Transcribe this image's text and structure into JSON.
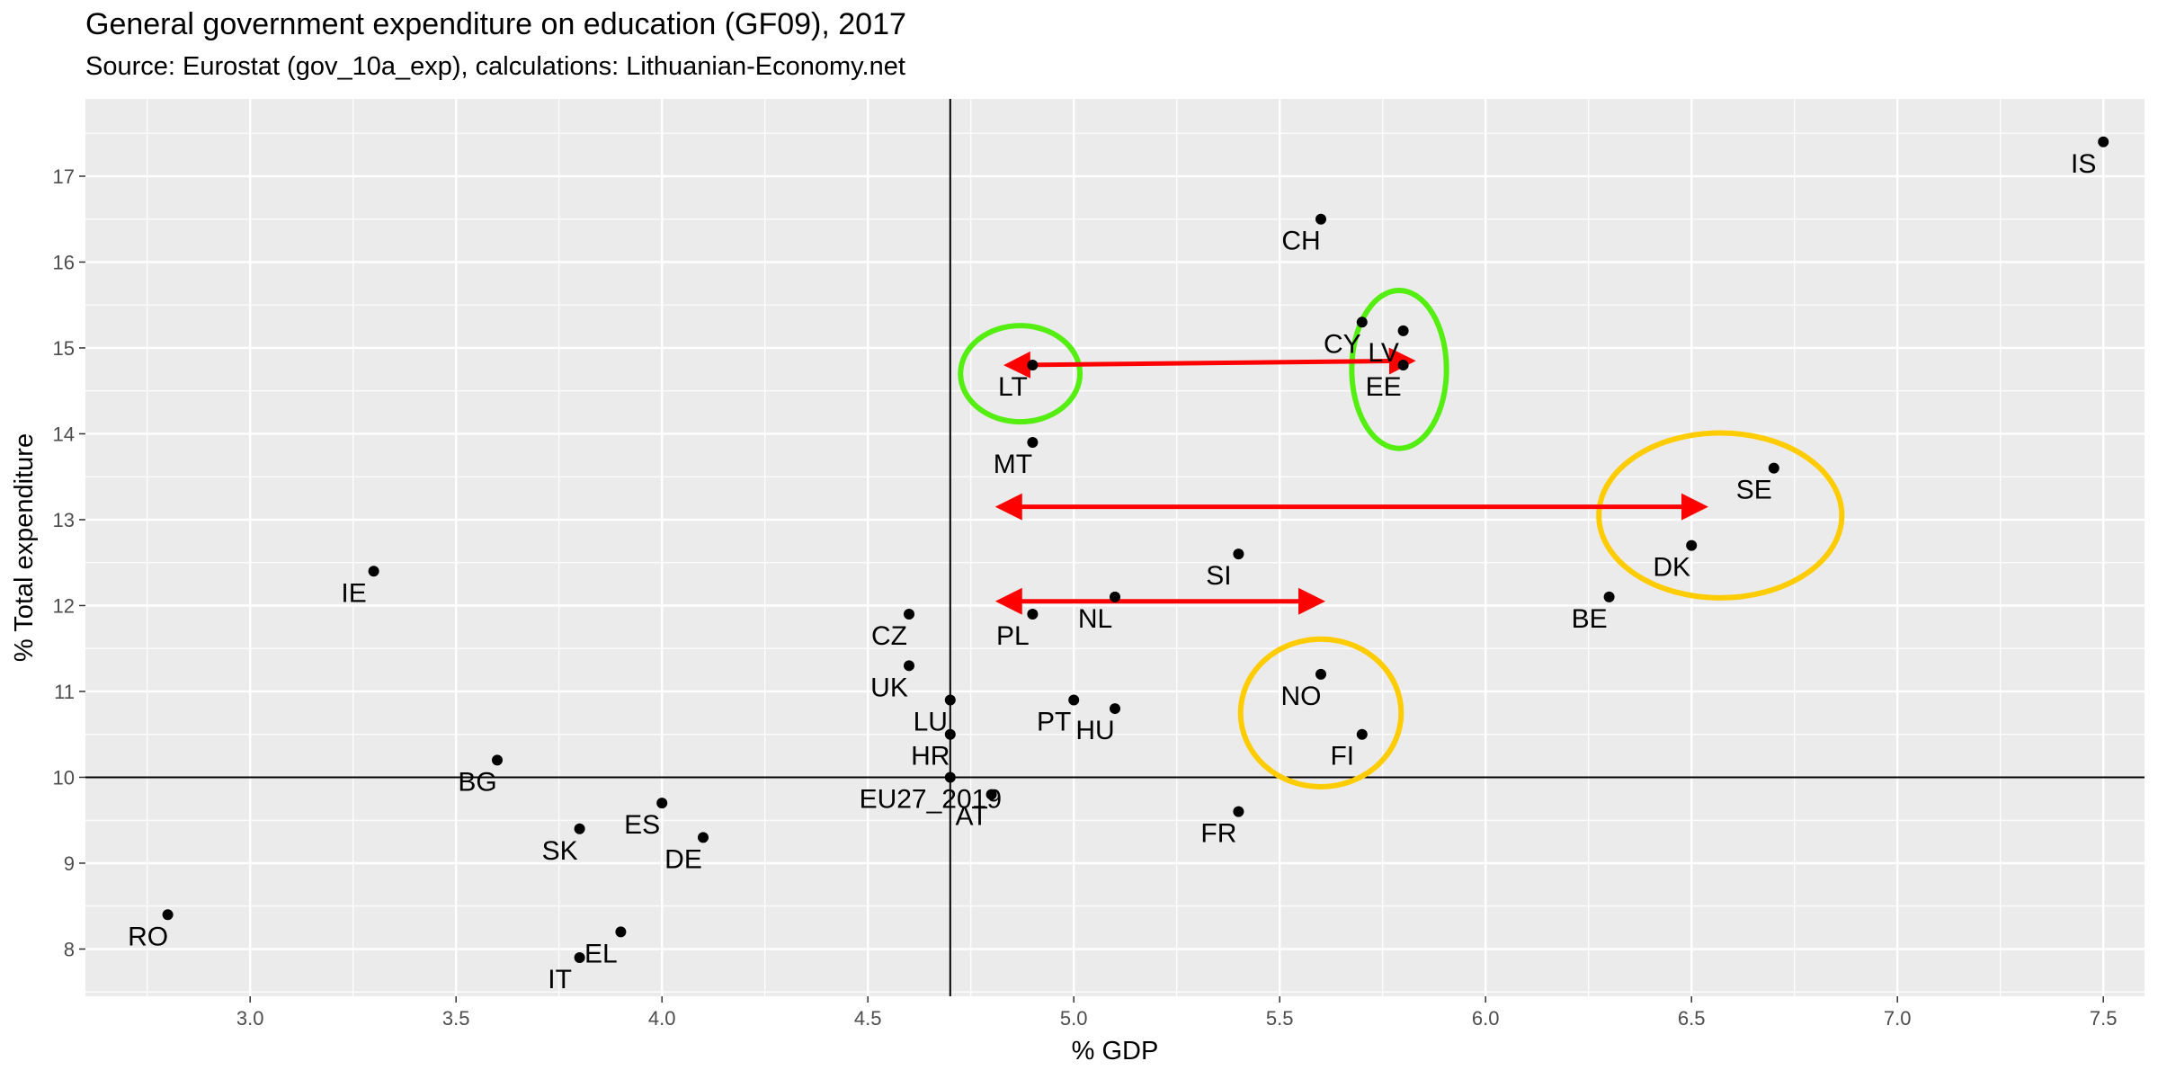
{
  "chart_data": {
    "type": "scatter",
    "title": "General government expenditure on education (GF09), 2017",
    "subtitle": "Source: Eurostat (gov_10a_exp), calculations: Lithuanian-Economy.net",
    "xlabel": "% GDP",
    "ylabel": "% Total expenditure",
    "xlim": [
      2.6,
      7.6
    ],
    "ylim": [
      7.45,
      17.9
    ],
    "x_ticks": [
      3.0,
      3.5,
      4.0,
      4.5,
      5.0,
      5.5,
      6.0,
      6.5,
      7.0,
      7.5
    ],
    "x_tick_labels": [
      "3.0",
      "3.5",
      "4.0",
      "4.5",
      "5.0",
      "5.5",
      "6.0",
      "6.5",
      "7.0",
      "7.5"
    ],
    "y_ticks": [
      8,
      9,
      10,
      11,
      12,
      13,
      14,
      15,
      16,
      17
    ],
    "y_tick_labels": [
      "8",
      "9",
      "10",
      "11",
      "12",
      "13",
      "14",
      "15",
      "16",
      "17"
    ],
    "grid": true,
    "reference_lines": {
      "x": 4.7,
      "y": 10.0
    },
    "points": [
      {
        "label": "IS",
        "x": 7.5,
        "y": 17.4
      },
      {
        "label": "CH",
        "x": 5.6,
        "y": 16.5
      },
      {
        "label": "CY",
        "x": 5.7,
        "y": 15.3
      },
      {
        "label": "LV",
        "x": 5.8,
        "y": 15.2
      },
      {
        "label": "EE",
        "x": 5.8,
        "y": 14.8
      },
      {
        "label": "LT",
        "x": 4.9,
        "y": 14.8
      },
      {
        "label": "MT",
        "x": 4.9,
        "y": 13.9
      },
      {
        "label": "SE",
        "x": 6.7,
        "y": 13.6
      },
      {
        "label": "DK",
        "x": 6.5,
        "y": 12.7
      },
      {
        "label": "SI",
        "x": 5.4,
        "y": 12.6
      },
      {
        "label": "IE",
        "x": 3.3,
        "y": 12.4
      },
      {
        "label": "BE",
        "x": 6.3,
        "y": 12.1
      },
      {
        "label": "NL",
        "x": 5.1,
        "y": 12.1
      },
      {
        "label": "CZ",
        "x": 4.6,
        "y": 11.9
      },
      {
        "label": "PL",
        "x": 4.9,
        "y": 11.9
      },
      {
        "label": "UK",
        "x": 4.6,
        "y": 11.3
      },
      {
        "label": "NO",
        "x": 5.6,
        "y": 11.2
      },
      {
        "label": "LU",
        "x": 4.7,
        "y": 10.9
      },
      {
        "label": "PT",
        "x": 5.0,
        "y": 10.9
      },
      {
        "label": "HU",
        "x": 5.1,
        "y": 10.8
      },
      {
        "label": "HR",
        "x": 4.7,
        "y": 10.5
      },
      {
        "label": "FI",
        "x": 5.7,
        "y": 10.5
      },
      {
        "label": "BG",
        "x": 3.6,
        "y": 10.2
      },
      {
        "label": "EU27_2019",
        "x": 4.7,
        "y": 10.0
      },
      {
        "label": "AT",
        "x": 4.8,
        "y": 9.8
      },
      {
        "label": "ES",
        "x": 4.0,
        "y": 9.7
      },
      {
        "label": "FR",
        "x": 5.4,
        "y": 9.6
      },
      {
        "label": "SK",
        "x": 3.8,
        "y": 9.4
      },
      {
        "label": "DE",
        "x": 4.1,
        "y": 9.3
      },
      {
        "label": "RO",
        "x": 2.8,
        "y": 8.4
      },
      {
        "label": "EL",
        "x": 3.9,
        "y": 8.2
      },
      {
        "label": "IT",
        "x": 3.8,
        "y": 7.9
      }
    ],
    "annotations": {
      "arrows": [
        {
          "from": {
            "x": 4.84,
            "y": 14.8
          },
          "to": {
            "x": 5.82,
            "y": 14.85
          },
          "color": "#ff0000",
          "double_headed": true
        },
        {
          "from": {
            "x": 4.82,
            "y": 13.15
          },
          "to": {
            "x": 6.53,
            "y": 13.15
          },
          "color": "#ff0000",
          "double_headed": true
        },
        {
          "from": {
            "x": 4.82,
            "y": 12.05
          },
          "to": {
            "x": 5.6,
            "y": 12.05
          },
          "color": "#ff0000",
          "double_headed": true
        }
      ],
      "ellipses": [
        {
          "cx": 4.87,
          "cy": 14.7,
          "rx": 0.145,
          "ry": 0.56,
          "color": "#55ee11"
        },
        {
          "cx": 5.79,
          "cy": 14.75,
          "rx": 0.115,
          "ry": 0.92,
          "color": "#55ee11"
        },
        {
          "cx": 6.57,
          "cy": 13.05,
          "rx": 0.295,
          "ry": 0.96,
          "color": "#ffcc00"
        },
        {
          "cx": 5.6,
          "cy": 10.75,
          "rx": 0.195,
          "ry": 0.86,
          "color": "#ffcc00"
        }
      ]
    }
  }
}
